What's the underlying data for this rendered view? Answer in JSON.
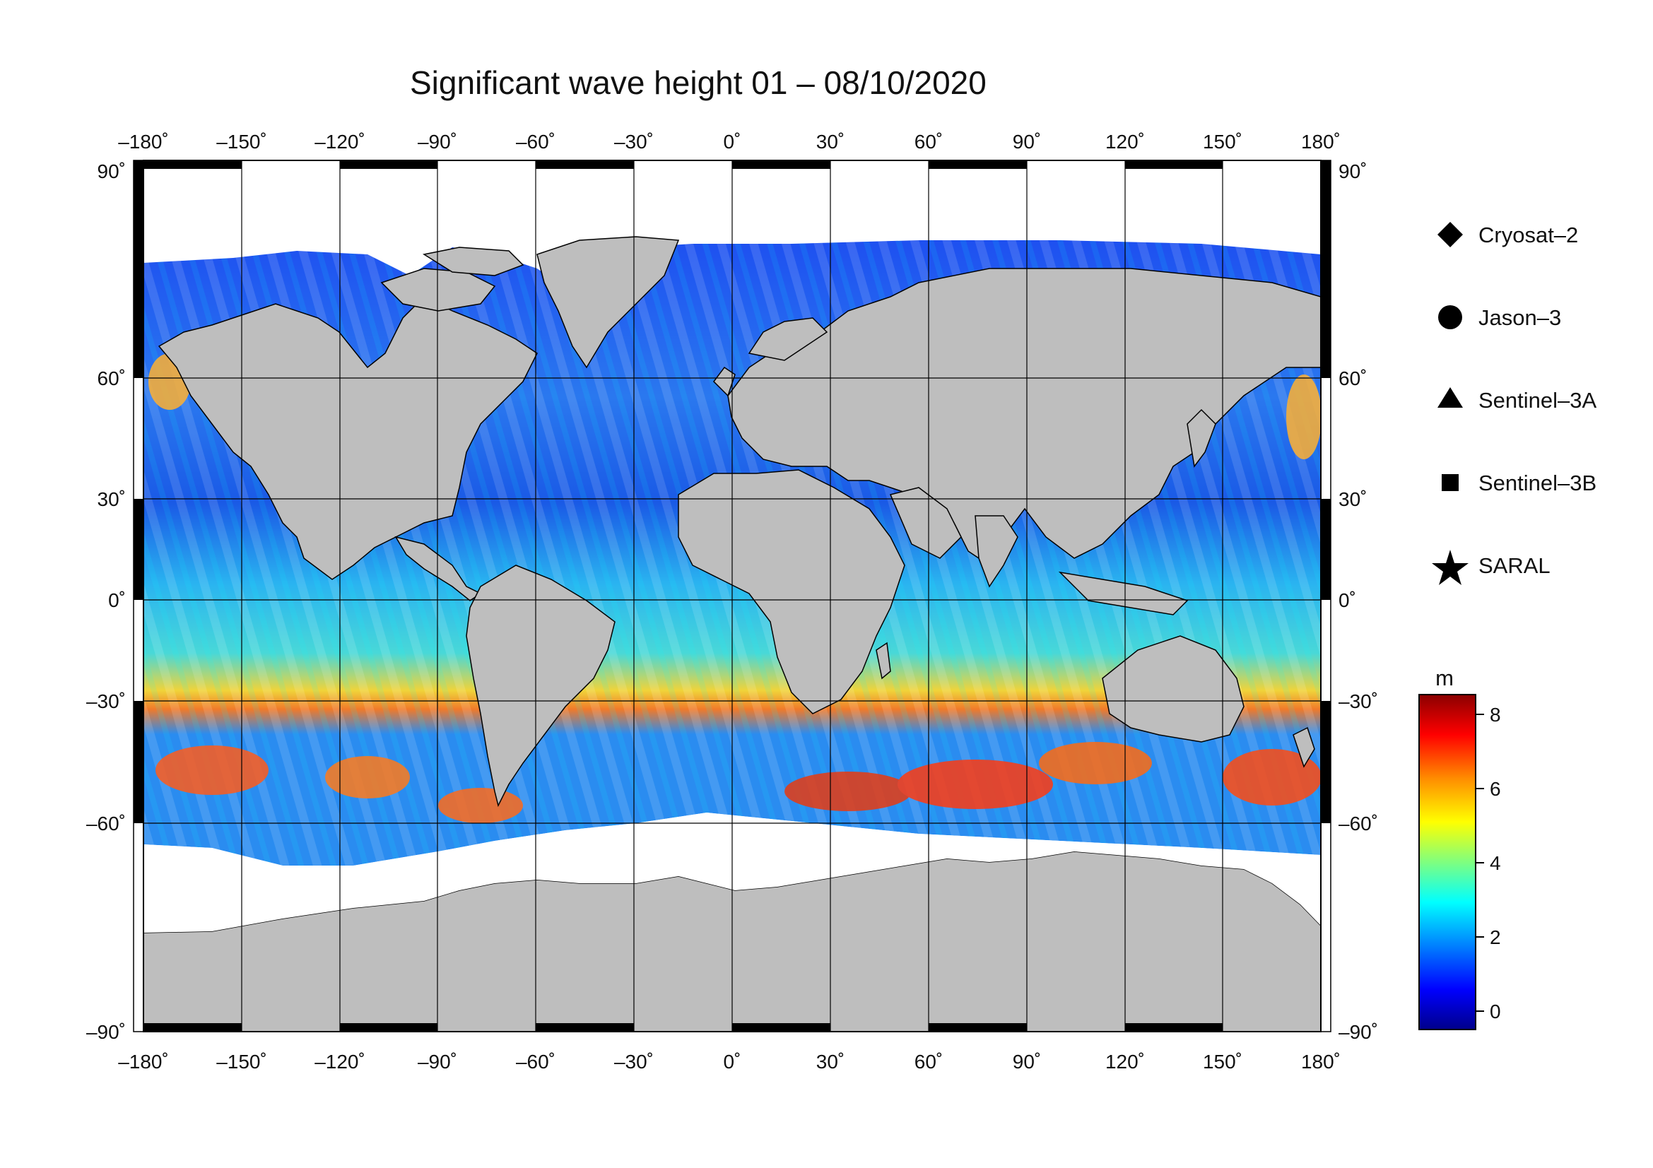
{
  "title": "Significant wave height 01 – 08/10/2020",
  "map": {
    "lon_ticks": [
      "–180˚",
      "–150˚",
      "–120˚",
      "–90˚",
      "–60˚",
      "–30˚",
      "0˚",
      "30˚",
      "60˚",
      "90˚",
      "120˚",
      "150˚",
      "180˚"
    ],
    "lat_ticks": [
      "90˚",
      "60˚",
      "30˚",
      "0˚",
      "–30˚",
      "–60˚",
      "–90˚"
    ],
    "land_color": "#bebebe",
    "ice_color": "#ffffff"
  },
  "legend": {
    "items": [
      {
        "label": "Cryosat–2",
        "marker": "diamond"
      },
      {
        "label": "Jason–3",
        "marker": "circle"
      },
      {
        "label": "Sentinel–3A",
        "marker": "triangle"
      },
      {
        "label": "Sentinel–3B",
        "marker": "square"
      },
      {
        "label": "SARAL",
        "marker": "star"
      }
    ]
  },
  "colorbar": {
    "unit": "m",
    "ticks": [
      "8",
      "6",
      "4",
      "2",
      "0"
    ],
    "colors": [
      "#8b0000",
      "#ff0000",
      "#ff8c00",
      "#ffff00",
      "#7fff7f",
      "#00ffff",
      "#0080ff",
      "#0000ff",
      "#00008b"
    ]
  }
}
